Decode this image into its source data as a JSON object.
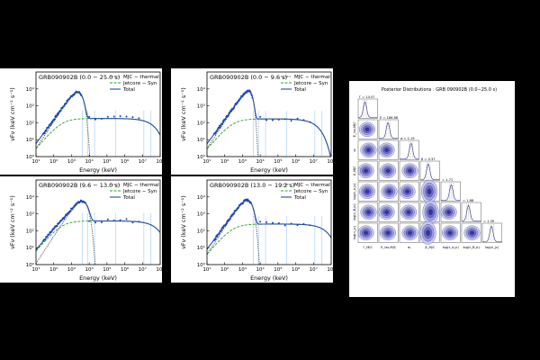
{
  "chart_data": [
    {
      "type": "line",
      "title": "GRB090902B  (0.0 − 25.0 s)",
      "xlabel": "Energy (keV)",
      "ylabel": "νFν (keV cm⁻² s⁻¹)",
      "xscale": "log",
      "yscale": "log",
      "xlim": [
        10,
        100000000
      ],
      "ylim": [
        1,
        100000
      ],
      "x_ticks": [
        "10¹",
        "10²",
        "10³",
        "10⁴",
        "10⁵",
        "10⁶",
        "10⁷",
        "10⁸"
      ],
      "y_ticks": [
        "10⁰",
        "10¹",
        "10²",
        "10³",
        "10⁴"
      ],
      "legend": [
        "MJC − thermal",
        "Jetcore − Syn",
        "Total"
      ],
      "legend_position": "top-right",
      "params": {
        "thermal_peak": 3000,
        "syn_level": 180,
        "syn_cut": 40000000,
        "steep": 1.6
      }
    },
    {
      "type": "line",
      "title": "GRB090902B  (0.0 − 9.6 s)",
      "xlabel": "Energy (keV)",
      "ylabel": "νFν (keV cm⁻² s⁻¹)",
      "xscale": "log",
      "yscale": "log",
      "xlim": [
        10,
        100000000
      ],
      "ylim": [
        1,
        100000
      ],
      "x_ticks": [
        "10¹",
        "10²",
        "10³",
        "10⁴",
        "10⁵",
        "10⁶",
        "10⁷",
        "10⁸"
      ],
      "y_ticks": [
        "10⁰",
        "10¹",
        "10²",
        "10³",
        "10⁴"
      ],
      "legend": [
        "MJC − thermal",
        "Jetcore − Syn",
        "Total"
      ],
      "legend_position": "top-right",
      "params": {
        "thermal_peak": 3000,
        "syn_level": 170,
        "syn_cut": 15000000,
        "steep": 2.2
      }
    },
    {
      "type": "line",
      "title": "GRB090902B  (9.6 − 13.0 s)",
      "xlabel": "Energy (keV)",
      "ylabel": "νFν (keV cm⁻² s⁻¹)",
      "xscale": "log",
      "yscale": "log",
      "xlim": [
        10,
        100000000
      ],
      "ylim": [
        1,
        100000
      ],
      "x_ticks": [
        "10¹",
        "10²",
        "10³",
        "10⁴",
        "10⁵",
        "10⁶",
        "10⁷",
        "10⁸"
      ],
      "y_ticks": [
        "10⁰",
        "10¹",
        "10²",
        "10³",
        "10⁴"
      ],
      "legend": [
        "MJC − thermal",
        "Jetcore − Syn",
        "Total"
      ],
      "legend_position": "top-right",
      "params": {
        "thermal_peak": 5000,
        "syn_level": 380,
        "syn_cut": 60000000,
        "steep": 1.4
      }
    },
    {
      "type": "line",
      "title": "GRB090902B  (13.0 − 19.2 s)",
      "xlabel": "Energy (keV)",
      "ylabel": "νFν (keV cm⁻² s⁻¹)",
      "xscale": "log",
      "yscale": "log",
      "xlim": [
        10,
        100000000
      ],
      "ylim": [
        1,
        100000
      ],
      "x_ticks": [
        "10¹",
        "10²",
        "10³",
        "10⁴",
        "10⁵",
        "10⁶",
        "10⁷",
        "10⁸"
      ],
      "y_ticks": [
        "10⁰",
        "10¹",
        "10²",
        "10³",
        "10⁴"
      ],
      "legend": [
        "MJC − thermal",
        "Jetcore − Syn",
        "Total"
      ],
      "legend_position": "top-right",
      "params": {
        "thermal_peak": 2500,
        "syn_level": 250,
        "syn_cut": 50000000,
        "steep": 1.6
      }
    },
    {
      "type": "heatmap",
      "title": "Posterior Distributions : GRB 090902B (0.0−25.0 s)",
      "n_params": 7,
      "param_labels": [
        "Γ_MJC",
        "E_iso,MJC",
        "σ₀",
        "β_MJC",
        "log(ε_e,jc)",
        "log(ε_B,jc)",
        "log(n_jc)"
      ],
      "diag_estimates": [
        "Γ = 14.57",
        "E = 186.88",
        "σ = 1.19",
        "β = 0.37",
        "= 1.71",
        "= 1.88",
        "= 1.39"
      ],
      "colors": {
        "contour": "#2d2f8f",
        "fill": "#c8c9ef"
      }
    }
  ],
  "colors": {
    "thermal": "#444444",
    "syn": "#2ca02c",
    "total": "#1f4fa0",
    "data": "#1a3cd6",
    "errbar": "#a9d0f5"
  }
}
